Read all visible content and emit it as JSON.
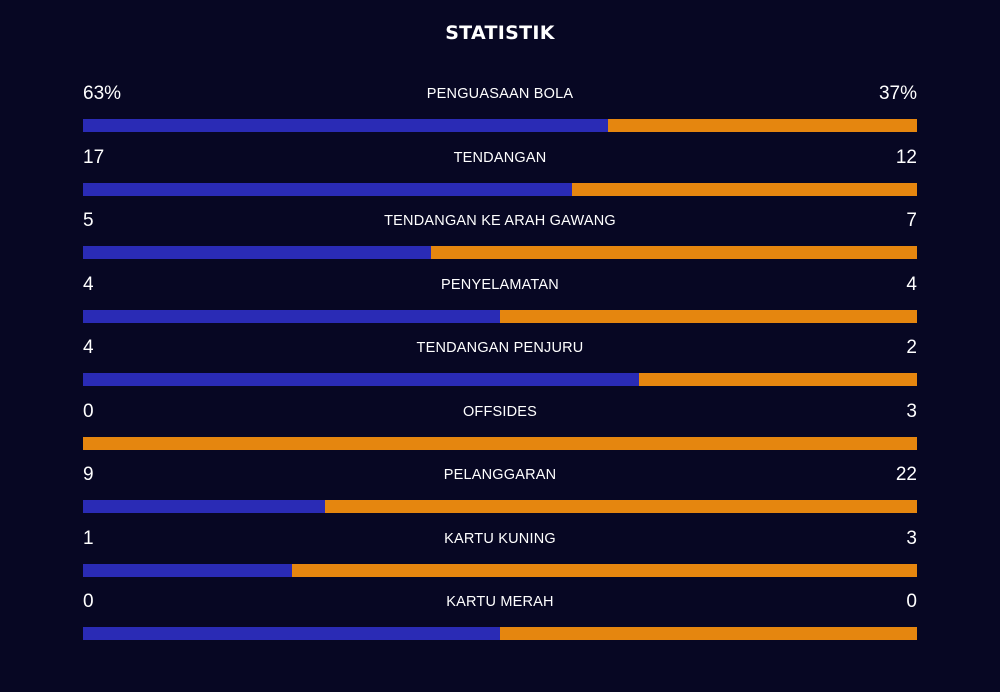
{
  "title": "STATISTIK",
  "colors": {
    "background": "#070723",
    "home": "#2a2bb5",
    "away": "#e5860f",
    "text": "#ffffff"
  },
  "stats": [
    {
      "label": "PENGUASAAN BOLA",
      "home": "63%",
      "away": "37%",
      "home_value": 63,
      "away_value": 37
    },
    {
      "label": "TENDANGAN",
      "home": "17",
      "away": "12",
      "home_value": 17,
      "away_value": 12
    },
    {
      "label": "TENDANGAN KE ARAH GAWANG",
      "home": "5",
      "away": "7",
      "home_value": 5,
      "away_value": 7
    },
    {
      "label": "PENYELAMATAN",
      "home": "4",
      "away": "4",
      "home_value": 4,
      "away_value": 4
    },
    {
      "label": "TENDANGAN PENJURU",
      "home": "4",
      "away": "2",
      "home_value": 4,
      "away_value": 2
    },
    {
      "label": "OFFSIDES",
      "home": "0",
      "away": "3",
      "home_value": 0,
      "away_value": 3
    },
    {
      "label": "PELANGGARAN",
      "home": "9",
      "away": "22",
      "home_value": 9,
      "away_value": 22
    },
    {
      "label": "KARTU KUNING",
      "home": "1",
      "away": "3",
      "home_value": 1,
      "away_value": 3
    },
    {
      "label": "KARTU MERAH",
      "home": "0",
      "away": "0",
      "home_value": 0,
      "away_value": 0
    }
  ]
}
